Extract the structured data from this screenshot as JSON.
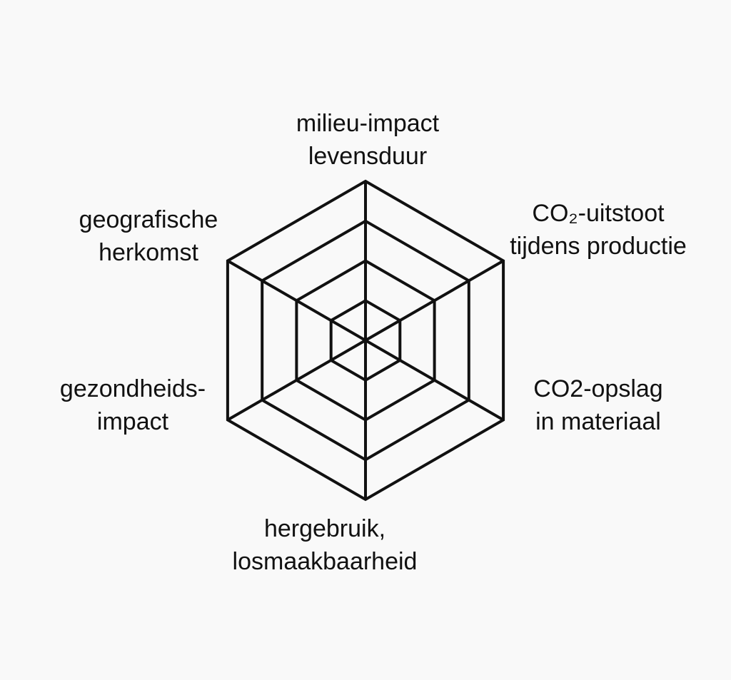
{
  "diagram": {
    "type": "radar-grid",
    "ring_count": 4,
    "stroke_color": "#111111",
    "background_color": "#f9f9f9",
    "axes": [
      {
        "id": "top",
        "lines": [
          "milieu-impact",
          "levensduur"
        ]
      },
      {
        "id": "upper-right",
        "lines": [
          "CO₂-uitstoot",
          "tijdens productie"
        ]
      },
      {
        "id": "lower-right",
        "lines": [
          "CO2-opslag",
          "in materiaal"
        ]
      },
      {
        "id": "bottom",
        "lines": [
          "hergebruik,",
          "losmaakbaarheid"
        ]
      },
      {
        "id": "lower-left",
        "lines": [
          "gezondheids-",
          "impact"
        ]
      },
      {
        "id": "upper-left",
        "lines": [
          "geografische",
          "herkomst"
        ]
      }
    ]
  }
}
